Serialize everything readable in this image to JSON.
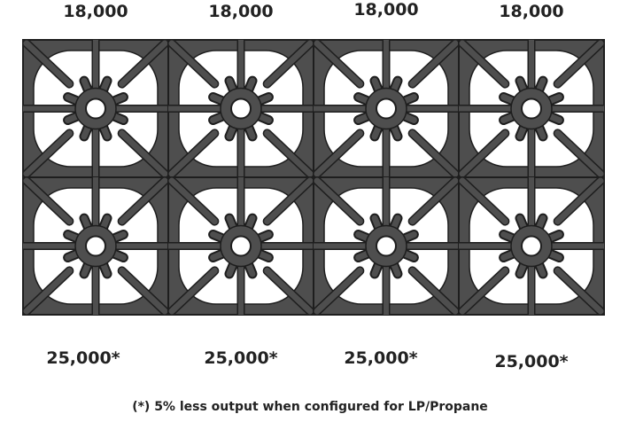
{
  "top_labels": [
    "18,000",
    "18,000",
    "18,000",
    "18,000"
  ],
  "bottom_labels": [
    "25,000*",
    "25,000*",
    "25,000*",
    "25,000*"
  ],
  "footnote": "(*) 5% less output when configured for LP/Propane",
  "colors": {
    "grate": "#4e4e4e",
    "outline": "#1e1e1e",
    "background": "#ffffff"
  }
}
